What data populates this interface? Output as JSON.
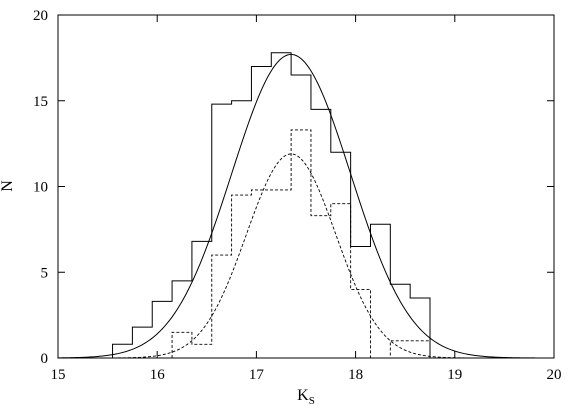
{
  "chart_data": {
    "type": "line",
    "title": "",
    "xlabel": "K",
    "xlabel_sub": "S",
    "ylabel": "N",
    "xlim": [
      15,
      20
    ],
    "ylim": [
      0,
      20
    ],
    "xticks": [
      15,
      16,
      17,
      18,
      19,
      20
    ],
    "yticks": [
      0,
      5,
      10,
      15,
      20
    ],
    "grid": false,
    "legend": "none",
    "series": [
      {
        "style": "histogram-solid",
        "color": "#000000",
        "bin_edges": [
          15.55,
          15.75,
          15.95,
          16.15,
          16.35,
          16.55,
          16.75,
          16.95,
          17.15,
          17.35,
          17.55,
          17.75,
          17.95,
          18.15,
          18.35,
          18.55,
          18.75
        ],
        "values": [
          0.8,
          1.8,
          3.3,
          4.5,
          6.8,
          14.8,
          15.0,
          17.0,
          17.8,
          16.5,
          14.5,
          12.0,
          6.5,
          7.8,
          4.3,
          3.5
        ]
      },
      {
        "style": "histogram-dashed",
        "color": "#000000",
        "bin_edges": [
          16.15,
          16.35,
          16.55,
          16.75,
          16.95,
          17.15,
          17.35,
          17.55,
          17.75,
          17.95,
          18.15,
          18.35,
          18.55,
          18.75
        ],
        "values": [
          1.5,
          0.8,
          6.0,
          9.5,
          9.8,
          9.8,
          13.3,
          8.3,
          9.0,
          4.0,
          0.0,
          1.0,
          1.0
        ]
      },
      {
        "style": "gaussian-solid",
        "color": "#000000",
        "amplitude": 17.7,
        "mean": 17.35,
        "sigma": 0.6
      },
      {
        "style": "gaussian-dashed",
        "color": "#000000",
        "amplitude": 11.9,
        "mean": 17.35,
        "sigma": 0.45
      }
    ]
  }
}
